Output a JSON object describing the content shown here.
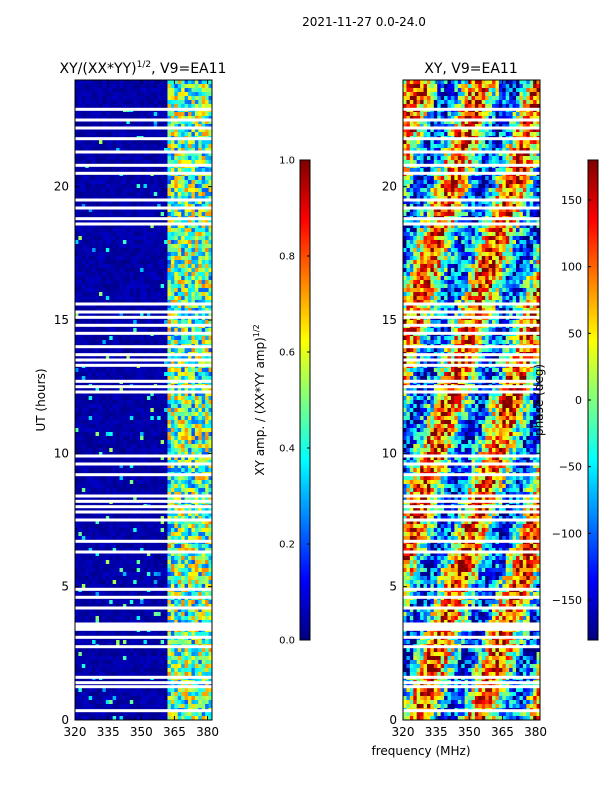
{
  "suptitle": "2021-11-27 0.0-24.0",
  "colors": {
    "jet": [
      "#00007f",
      "#0000ff",
      "#007fff",
      "#00ffff",
      "#7fff7f",
      "#ffff00",
      "#ff7f00",
      "#ff0000",
      "#7f0000"
    ],
    "background": "#ffffff",
    "frame": "#000000"
  },
  "chart_data": [
    {
      "type": "heatmap",
      "title_main": "XY/(XX*YY)",
      "title_sup": "1/2",
      "title_rest": ", V9=EA11",
      "xlabel": "",
      "ylabel": "UT (hours)",
      "xlim": [
        320,
        382
      ],
      "ylim": [
        0,
        24
      ],
      "xticks": [
        320,
        335,
        350,
        365,
        380
      ],
      "yticks": [
        0,
        5,
        10,
        15,
        20
      ],
      "colorbar": {
        "label_main": "XY amp. / (XX*YY amp)",
        "label_sup": "1/2",
        "range": [
          0.0,
          1.0
        ],
        "ticks": [
          "0.0",
          "0.2",
          "0.4",
          "0.6",
          "0.8",
          "1.0"
        ]
      },
      "gap_hours_utc": [
        0.35,
        1.25,
        1.4,
        1.6,
        2.75,
        3.1,
        3.4,
        3.5,
        3.6,
        4.2,
        4.6,
        4.9,
        6.3,
        6.7,
        7.5,
        7.8,
        8.0,
        8.2,
        8.4,
        9.2,
        9.6,
        9.9,
        12.3,
        12.5,
        12.7,
        13.3,
        13.5,
        13.7,
        14.0,
        14.5,
        14.8,
        15.1,
        15.3,
        15.6,
        18.6,
        18.8,
        19.2,
        19.5,
        20.5,
        20.8,
        21.3,
        21.8,
        22.2,
        22.5,
        22.9
      ]
    },
    {
      "type": "heatmap",
      "title_main": "XY, V9=EA11",
      "xlabel": "frequency (MHz)",
      "ylabel": "",
      "xlim": [
        320,
        382
      ],
      "ylim": [
        0,
        24
      ],
      "xticks": [
        320,
        335,
        350,
        365,
        380
      ],
      "yticks": [
        0,
        5,
        10,
        15,
        20
      ],
      "colorbar": {
        "label": "phase (deg)",
        "range": [
          -180,
          180
        ],
        "ticks": [
          "150",
          "100",
          "50",
          "0",
          "−50",
          "−100",
          "−150"
        ],
        "tick_values": [
          150,
          100,
          50,
          0,
          -50,
          -100,
          -150
        ]
      },
      "gap_hours_utc": [
        0.35,
        1.25,
        1.4,
        1.6,
        2.75,
        3.1,
        3.4,
        3.5,
        3.6,
        4.2,
        4.6,
        4.9,
        6.3,
        6.7,
        7.5,
        7.8,
        8.0,
        8.2,
        8.4,
        9.2,
        9.6,
        9.9,
        12.3,
        12.5,
        12.7,
        13.3,
        13.5,
        13.7,
        14.0,
        14.5,
        14.8,
        15.1,
        15.3,
        15.6,
        18.6,
        18.8,
        19.2,
        19.5,
        20.5,
        20.8,
        21.3,
        21.8,
        22.2,
        22.5,
        22.9
      ]
    }
  ]
}
